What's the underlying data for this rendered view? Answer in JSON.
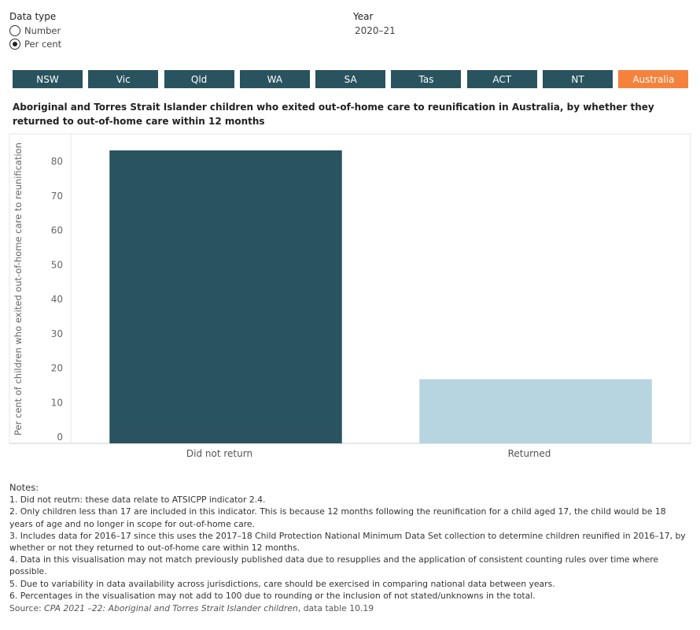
{
  "controls": {
    "data_type_label": "Data type",
    "options": [
      {
        "label": "Number",
        "selected": false
      },
      {
        "label": "Per cent",
        "selected": true
      }
    ],
    "year_label": "Year",
    "year_value": "2020–21"
  },
  "tabs": [
    {
      "label": "NSW",
      "active": false
    },
    {
      "label": "Vic",
      "active": false
    },
    {
      "label": "Qld",
      "active": false
    },
    {
      "label": "WA",
      "active": false
    },
    {
      "label": "SA",
      "active": false
    },
    {
      "label": "Tas",
      "active": false
    },
    {
      "label": "ACT",
      "active": false
    },
    {
      "label": "NT",
      "active": false
    },
    {
      "label": "Australia",
      "active": true
    }
  ],
  "colors": {
    "tab_default": "#29535f",
    "tab_active": "#f5823c",
    "bar_did_not_return": "#29535f",
    "bar_returned": "#b7d5e0"
  },
  "chart_data": {
    "type": "bar",
    "title": "Aboriginal and Torres Strait Islander children who exited out-of-home care to reunification in Australia, by whether they returned to out-of-home care within 12 months",
    "ylabel": "Per cent of children who exited out-of-home care to reunification",
    "xlabel": "",
    "categories": [
      "Did not return",
      "Returned"
    ],
    "values": [
      83.2,
      16.8
    ],
    "bar_colors": [
      "#29535f",
      "#b7d5e0"
    ],
    "ylim": [
      0,
      88
    ],
    "yticks": [
      0,
      10,
      20,
      30,
      40,
      50,
      60,
      70,
      80
    ],
    "grid": false
  },
  "notes": {
    "title": "Notes:",
    "items": [
      "1. Did not reutrn: these data relate to ATSICPP indicator 2.4.",
      "2. Only children less than 17 are included in this indicator. This is because 12 months following the reunification for a child aged 17, the child would be 18 years of age and no longer in scope for out-of-home care.",
      "3. Includes data for 2016–17 since this uses the 2017–18 Child Protection National Minimum Data Set collection to determine children reunified in 2016–17, by whether or not they returned to out-of-home care within 12 months.",
      "4. Data in this visualisation may not match previously published data due to resupplies and the application of consistent counting rules over time where possible.",
      "5. Due to variability in data availability across jurisdictions, care should be exercised in comparing national data between years.",
      "6. Percentages in the visualisation may not add to 100 due to rounding or the inclusion of not stated/unknowns in the total."
    ]
  },
  "source": {
    "prefix": "Source: ",
    "title": "CPA 2021 –22: Aboriginal and Torres Strait Islander children",
    "suffix": ", data table 10.19"
  }
}
